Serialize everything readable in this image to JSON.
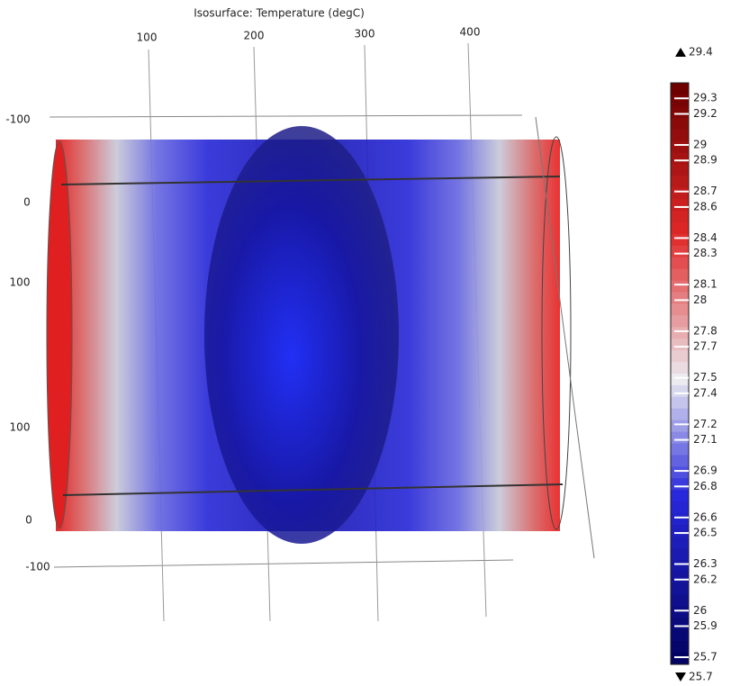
{
  "chart_data": {
    "type": "isosurface",
    "title": "Isosurface: Temperature (degC)",
    "top_axis_labels": [
      100,
      200,
      300,
      400
    ],
    "left_axis_labels": [
      -100,
      0,
      100,
      100,
      0,
      -100
    ],
    "colorbar": {
      "max": 29.4,
      "min": 25.7,
      "ticks": [
        29.3,
        29.2,
        29,
        28.9,
        28.7,
        28.6,
        28.4,
        28.3,
        28.1,
        28,
        27.8,
        27.7,
        27.5,
        27.4,
        27.2,
        27.1,
        26.9,
        26.8,
        26.6,
        26.5,
        26.3,
        26.2,
        26,
        25.9,
        25.7
      ]
    }
  }
}
